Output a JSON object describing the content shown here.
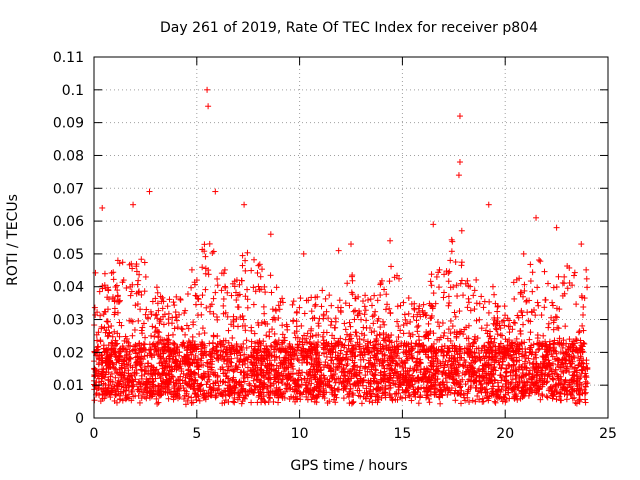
{
  "chart_data": {
    "type": "scatter",
    "title": "Day 261 of 2019, Rate Of TEC Index for receiver p804",
    "xlabel": "GPS time / hours",
    "ylabel": "ROTI / TECUs",
    "xlim": [
      0,
      25
    ],
    "ylim": [
      0,
      0.11
    ],
    "x_ticks": [
      "0",
      "5",
      "10",
      "15",
      "20",
      "25"
    ],
    "y_ticks": [
      "0",
      "0.01",
      "0.02",
      "0.03",
      "0.04",
      "0.05",
      "0.06",
      "0.07",
      "0.08",
      "0.09",
      "0.1",
      "0.11"
    ],
    "grid": true,
    "marker": "+",
    "color": "#ff0000",
    "x_data_extent": [
      0,
      24
    ],
    "baseline_band": [
      0.004,
      0.02
    ],
    "notable_points": [
      {
        "x": 5.5,
        "y": 0.1
      },
      {
        "x": 5.55,
        "y": 0.095
      },
      {
        "x": 17.8,
        "y": 0.092
      },
      {
        "x": 17.8,
        "y": 0.078
      },
      {
        "x": 17.75,
        "y": 0.074
      },
      {
        "x": 2.7,
        "y": 0.069
      },
      {
        "x": 5.9,
        "y": 0.069
      },
      {
        "x": 7.3,
        "y": 0.065
      },
      {
        "x": 19.2,
        "y": 0.065
      },
      {
        "x": 0.4,
        "y": 0.064
      },
      {
        "x": 1.9,
        "y": 0.065
      },
      {
        "x": 21.5,
        "y": 0.061
      },
      {
        "x": 16.5,
        "y": 0.059
      },
      {
        "x": 22.5,
        "y": 0.058
      },
      {
        "x": 8.6,
        "y": 0.056
      },
      {
        "x": 14.4,
        "y": 0.054
      },
      {
        "x": 23.7,
        "y": 0.053
      },
      {
        "x": 12.5,
        "y": 0.053
      },
      {
        "x": 11.9,
        "y": 0.051
      },
      {
        "x": 10.2,
        "y": 0.05
      },
      {
        "x": 20.9,
        "y": 0.05
      }
    ],
    "activity_envelope": [
      {
        "x": 0.5,
        "y": 0.045
      },
      {
        "x": 1.5,
        "y": 0.05
      },
      {
        "x": 2.5,
        "y": 0.048
      },
      {
        "x": 3.5,
        "y": 0.035
      },
      {
        "x": 4.5,
        "y": 0.042
      },
      {
        "x": 5.3,
        "y": 0.058
      },
      {
        "x": 6.5,
        "y": 0.045
      },
      {
        "x": 7.3,
        "y": 0.052
      },
      {
        "x": 8.5,
        "y": 0.045
      },
      {
        "x": 9.5,
        "y": 0.035
      },
      {
        "x": 10.5,
        "y": 0.038
      },
      {
        "x": 11.5,
        "y": 0.04
      },
      {
        "x": 12.5,
        "y": 0.045
      },
      {
        "x": 13.5,
        "y": 0.04
      },
      {
        "x": 14.3,
        "y": 0.05
      },
      {
        "x": 15.5,
        "y": 0.035
      },
      {
        "x": 16.5,
        "y": 0.045
      },
      {
        "x": 17.8,
        "y": 0.06
      },
      {
        "x": 18.5,
        "y": 0.045
      },
      {
        "x": 19.5,
        "y": 0.04
      },
      {
        "x": 20.5,
        "y": 0.042
      },
      {
        "x": 21.5,
        "y": 0.05
      },
      {
        "x": 22.5,
        "y": 0.045
      },
      {
        "x": 23.5,
        "y": 0.048
      }
    ]
  }
}
